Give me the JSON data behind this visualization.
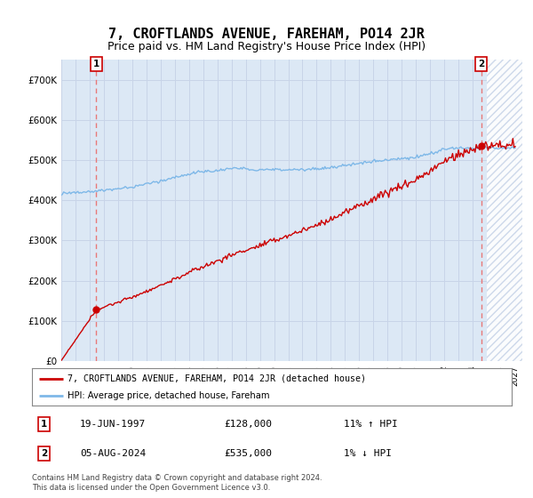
{
  "title": "7, CROFTLANDS AVENUE, FAREHAM, PO14 2JR",
  "subtitle": "Price paid vs. HM Land Registry's House Price Index (HPI)",
  "ylim": [
    0,
    750000
  ],
  "yticks": [
    0,
    100000,
    200000,
    300000,
    400000,
    500000,
    600000,
    700000
  ],
  "ytick_labels": [
    "£0",
    "£100K",
    "£200K",
    "£300K",
    "£400K",
    "£500K",
    "£600K",
    "£700K"
  ],
  "xlim_start": 1995.0,
  "xlim_end": 2027.5,
  "sale1_date": 1997.47,
  "sale1_price": 128000,
  "sale1_label": "1",
  "sale1_text": "19-JUN-1997",
  "sale1_amount": "£128,000",
  "sale1_hpi": "11% ↑ HPI",
  "sale2_date": 2024.59,
  "sale2_price": 535000,
  "sale2_label": "2",
  "sale2_text": "05-AUG-2024",
  "sale2_amount": "£535,000",
  "sale2_hpi": "1% ↓ HPI",
  "hpi_line_color": "#7eb8e8",
  "price_line_color": "#cc0000",
  "dot_color": "#cc0000",
  "vline_color": "#e87878",
  "grid_color": "#c8d4e8",
  "bg_color": "#dce8f5",
  "hatch_color": "#c8d4e8",
  "legend_label_price": "7, CROFTLANDS AVENUE, FAREHAM, PO14 2JR (detached house)",
  "legend_label_hpi": "HPI: Average price, detached house, Fareham",
  "footer": "Contains HM Land Registry data © Crown copyright and database right 2024.\nThis data is licensed under the Open Government Licence v3.0.",
  "title_fontsize": 11,
  "subtitle_fontsize": 9
}
